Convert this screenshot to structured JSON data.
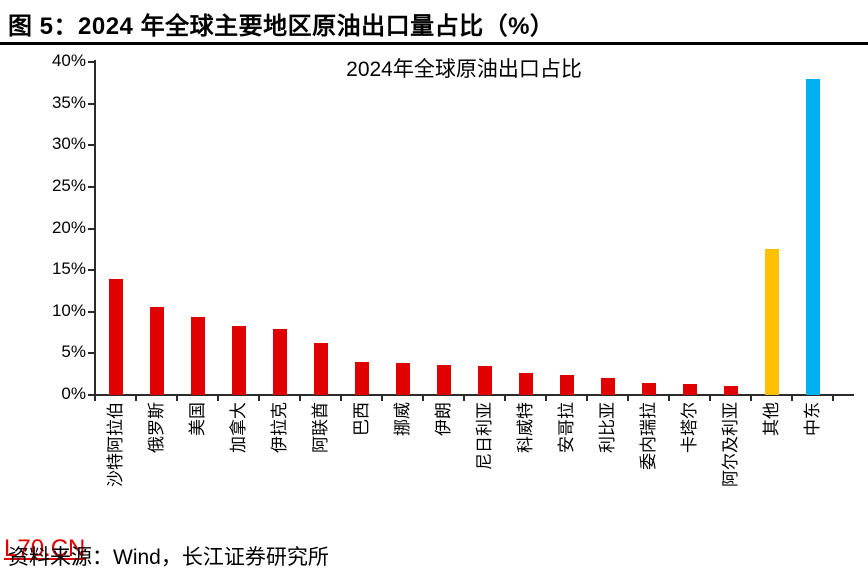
{
  "figure": {
    "title": "图 5：2024 年全球主要地区原油出口量占比（%）"
  },
  "chart_data": {
    "type": "bar",
    "title": "2024年全球原油出口占比",
    "categories": [
      "沙特阿拉伯",
      "俄罗斯",
      "美国",
      "加拿大",
      "伊拉克",
      "阿联酋",
      "巴西",
      "挪威",
      "伊朗",
      "尼日利亚",
      "科威特",
      "安哥拉",
      "利比亚",
      "委内瑞拉",
      "卡塔尔",
      "阿尔及利亚",
      "其他",
      "中东"
    ],
    "values": [
      14.0,
      10.6,
      9.4,
      8.3,
      7.9,
      6.3,
      4.0,
      3.8,
      3.6,
      3.5,
      2.7,
      2.4,
      2.1,
      1.5,
      1.3,
      1.1,
      17.5,
      38.0
    ],
    "bar_colors": [
      "#e00000",
      "#e00000",
      "#e00000",
      "#e00000",
      "#e00000",
      "#e00000",
      "#e00000",
      "#e00000",
      "#e00000",
      "#e00000",
      "#e00000",
      "#e00000",
      "#e00000",
      "#e00000",
      "#e00000",
      "#e00000",
      "#ffc000",
      "#00b0f0"
    ],
    "xlabel": "",
    "ylabel": "",
    "ylim": [
      0,
      40
    ],
    "ytick_step": 5,
    "ytick_labels": [
      "0%",
      "5%",
      "10%",
      "15%",
      "20%",
      "25%",
      "30%",
      "35%",
      "40%"
    ],
    "grid": false,
    "legend": null
  },
  "footer": {
    "source": "资料来源：Wind，长江证券研究所",
    "watermark": "L70.CN"
  },
  "colors": {
    "bar_red": "#e00000",
    "bar_orange": "#ffc000",
    "bar_blue": "#00b0f0",
    "axis": "#2b2b2b",
    "title_text": "#000000",
    "watermark_red": "#e00000"
  }
}
